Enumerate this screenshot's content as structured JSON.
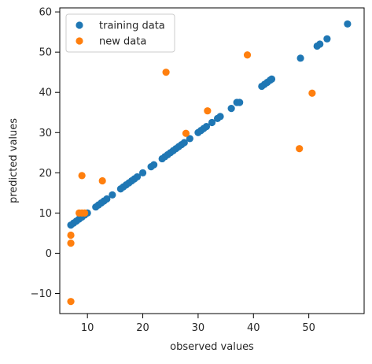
{
  "chart_data": {
    "type": "scatter",
    "title": "",
    "xlabel": "observed values",
    "ylabel": "predicted values",
    "xlim": [
      5,
      60
    ],
    "ylim": [
      -15,
      61
    ],
    "xticks": [
      10,
      20,
      30,
      40,
      50
    ],
    "yticks": [
      -10,
      0,
      10,
      20,
      30,
      40,
      50,
      60
    ],
    "grid": false,
    "legend_position": "upper-left",
    "series": [
      {
        "name": "training data",
        "color": "#1f77b4",
        "points": [
          [
            7.0,
            7.0
          ],
          [
            7.5,
            7.5
          ],
          [
            8.0,
            8.0
          ],
          [
            8.5,
            8.5
          ],
          [
            9.0,
            9.0
          ],
          [
            9.5,
            9.5
          ],
          [
            10.0,
            10.0
          ],
          [
            11.5,
            11.5
          ],
          [
            12.0,
            12.0
          ],
          [
            12.5,
            12.5
          ],
          [
            13.0,
            13.0
          ],
          [
            13.5,
            13.5
          ],
          [
            14.5,
            14.5
          ],
          [
            16.0,
            16.0
          ],
          [
            16.5,
            16.5
          ],
          [
            17.0,
            17.0
          ],
          [
            17.5,
            17.5
          ],
          [
            18.0,
            18.0
          ],
          [
            18.5,
            18.5
          ],
          [
            19.0,
            19.0
          ],
          [
            20.0,
            20.0
          ],
          [
            21.5,
            21.5
          ],
          [
            22.0,
            22.0
          ],
          [
            23.5,
            23.5
          ],
          [
            24.0,
            24.0
          ],
          [
            24.5,
            24.5
          ],
          [
            25.0,
            25.0
          ],
          [
            25.5,
            25.5
          ],
          [
            26.0,
            26.0
          ],
          [
            26.5,
            26.5
          ],
          [
            27.0,
            27.0
          ],
          [
            27.5,
            27.5
          ],
          [
            28.5,
            28.5
          ],
          [
            30.0,
            30.0
          ],
          [
            30.5,
            30.5
          ],
          [
            31.0,
            31.0
          ],
          [
            31.5,
            31.5
          ],
          [
            32.5,
            32.5
          ],
          [
            33.5,
            33.5
          ],
          [
            34.0,
            34.0
          ],
          [
            36.0,
            36.0
          ],
          [
            37.0,
            37.5
          ],
          [
            37.5,
            37.5
          ],
          [
            41.5,
            41.5
          ],
          [
            42.0,
            42.0
          ],
          [
            42.5,
            42.5
          ],
          [
            43.0,
            43.0
          ],
          [
            43.3,
            43.3
          ],
          [
            48.5,
            48.5
          ],
          [
            51.5,
            51.5
          ],
          [
            52.0,
            52.0
          ],
          [
            53.3,
            53.3
          ],
          [
            57.0,
            57.0
          ]
        ]
      },
      {
        "name": "new data",
        "color": "#ff7f0e",
        "points": [
          [
            7.0,
            -12.0
          ],
          [
            7.0,
            2.5
          ],
          [
            7.0,
            4.5
          ],
          [
            8.5,
            10.0
          ],
          [
            9.0,
            10.0
          ],
          [
            9.5,
            10.0
          ],
          [
            9.0,
            19.3
          ],
          [
            12.7,
            18.0
          ],
          [
            24.2,
            45.0
          ],
          [
            27.8,
            29.8
          ],
          [
            31.7,
            35.4
          ],
          [
            38.9,
            49.3
          ],
          [
            48.3,
            26.0
          ],
          [
            50.6,
            39.8
          ]
        ]
      }
    ]
  }
}
